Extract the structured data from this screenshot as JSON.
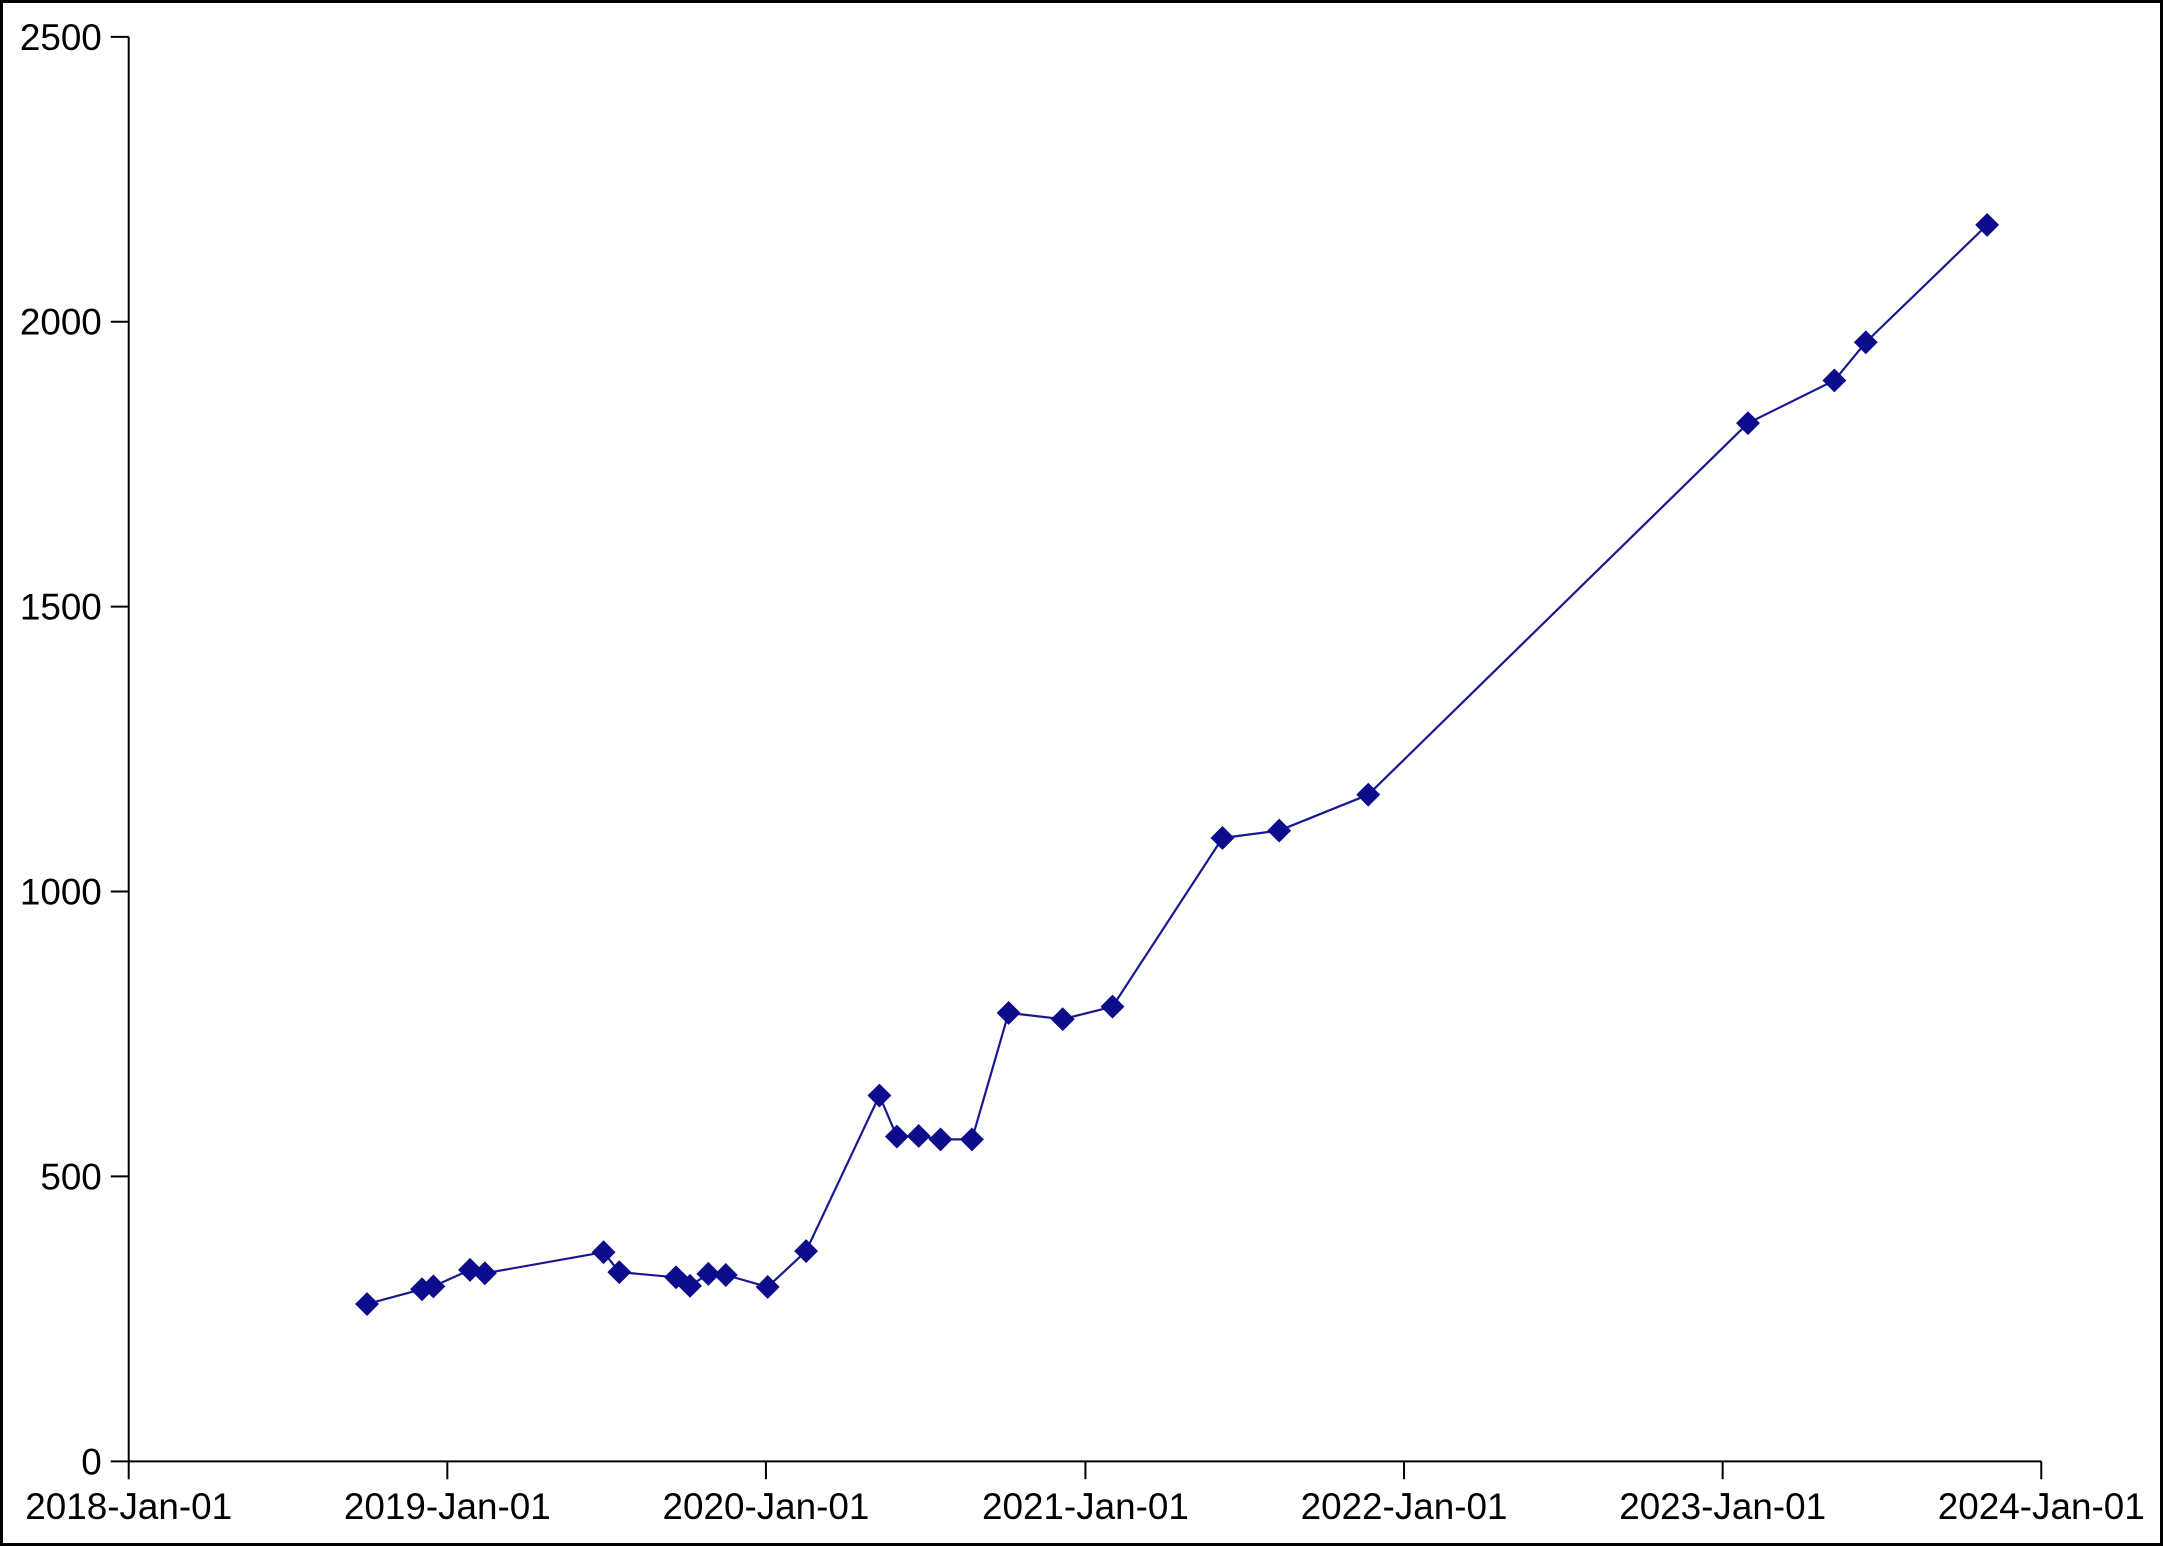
{
  "chart_data": {
    "type": "line",
    "title": "",
    "xlabel": "",
    "ylabel": "",
    "grid": false,
    "legend_position": "none",
    "background_color": "#ffffff",
    "axis_color": "#000000",
    "x_axis": {
      "type": "date",
      "range": [
        "2018-01-01",
        "2024-01-01"
      ],
      "tick_labels": [
        "2018-Jan-01",
        "2019-Jan-01",
        "2020-Jan-01",
        "2021-Jan-01",
        "2022-Jan-01",
        "2023-Jan-01",
        "2024-Jan-01"
      ],
      "tick_dates": [
        "2018-01-01",
        "2019-01-01",
        "2020-01-01",
        "2021-01-01",
        "2022-01-01",
        "2023-01-01",
        "2024-01-01"
      ]
    },
    "y_axis": {
      "range": [
        0,
        2500
      ],
      "tick_labels": [
        "0",
        "500",
        "1000",
        "1500",
        "2000",
        "2500"
      ],
      "tick_values": [
        0,
        500,
        1000,
        1500,
        2000,
        2500
      ]
    },
    "series": [
      {
        "marker": "diamond",
        "color": "#0c0c8c",
        "line_color": "#18188f",
        "points": [
          [
            "2018-10-01",
            276
          ],
          [
            "2018-12-03",
            302
          ],
          [
            "2018-12-16",
            307
          ],
          [
            "2019-01-27",
            336
          ],
          [
            "2019-02-13",
            330
          ],
          [
            "2019-06-29",
            367
          ],
          [
            "2019-07-17",
            332
          ],
          [
            "2019-09-20",
            323
          ],
          [
            "2019-10-06",
            308
          ],
          [
            "2019-10-27",
            329
          ],
          [
            "2019-11-16",
            327
          ],
          [
            "2020-01-03",
            306
          ],
          [
            "2020-02-16",
            369
          ],
          [
            "2020-05-10",
            642
          ],
          [
            "2020-05-30",
            570
          ],
          [
            "2020-06-24",
            571
          ],
          [
            "2020-07-19",
            565
          ],
          [
            "2020-08-24",
            565
          ],
          [
            "2020-10-05",
            787
          ],
          [
            "2020-12-06",
            776
          ],
          [
            "2021-02-01",
            798
          ],
          [
            "2021-06-07",
            1094
          ],
          [
            "2021-08-11",
            1107
          ],
          [
            "2021-11-21",
            1170
          ],
          [
            "2023-01-30",
            1822
          ],
          [
            "2023-05-09",
            1897
          ],
          [
            "2023-06-14",
            1964
          ],
          [
            "2023-10-31",
            2170
          ]
        ]
      }
    ]
  }
}
